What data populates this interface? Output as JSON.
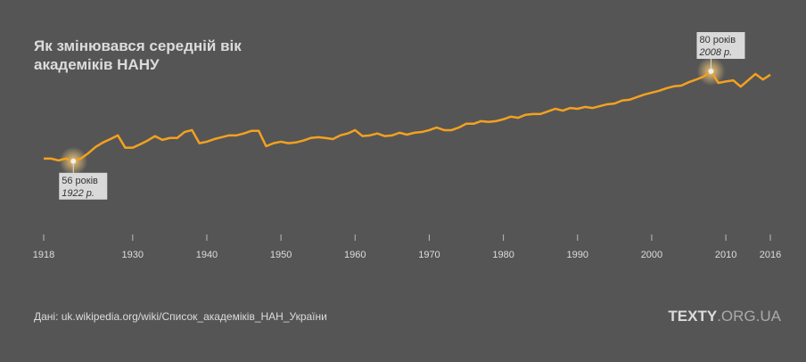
{
  "chart_data": {
    "type": "line",
    "title": [
      "Як змінювався середній вік",
      "академіків НАНУ"
    ],
    "x": [
      1918,
      1919,
      1920,
      1921,
      1922,
      1923,
      1924,
      1925,
      1926,
      1927,
      1928,
      1929,
      1930,
      1931,
      1932,
      1933,
      1934,
      1935,
      1936,
      1937,
      1938,
      1939,
      1940,
      1941,
      1942,
      1943,
      1944,
      1945,
      1946,
      1947,
      1948,
      1949,
      1950,
      1951,
      1952,
      1953,
      1954,
      1955,
      1956,
      1957,
      1958,
      1959,
      1960,
      1961,
      1962,
      1963,
      1964,
      1965,
      1966,
      1967,
      1968,
      1969,
      1970,
      1971,
      1972,
      1973,
      1974,
      1975,
      1976,
      1977,
      1978,
      1979,
      1980,
      1981,
      1982,
      1983,
      1984,
      1985,
      1986,
      1987,
      1988,
      1989,
      1990,
      1991,
      1992,
      1993,
      1994,
      1995,
      1996,
      1997,
      1998,
      1999,
      2000,
      2001,
      2002,
      2003,
      2004,
      2005,
      2006,
      2007,
      2008,
      2009,
      2010,
      2011,
      2012,
      2013,
      2014,
      2015,
      2016
    ],
    "series": [
      {
        "color": "#f4a11e",
        "values": [
          56.7,
          56.7,
          56.2,
          56.7,
          56,
          56.7,
          58.1,
          59.8,
          61,
          61.9,
          62.9,
          59.6,
          59.6,
          60.5,
          61.5,
          62.7,
          61.7,
          62.2,
          62.2,
          63.8,
          64.3,
          60.8,
          61.2,
          61.9,
          62.4,
          62.9,
          62.9,
          63.4,
          64.1,
          64.1,
          60,
          60.8,
          61.2,
          60.8,
          61,
          61.5,
          62.2,
          62.4,
          62.2,
          61.9,
          62.9,
          63.4,
          64.3,
          62.7,
          62.9,
          63.4,
          62.7,
          62.9,
          63.6,
          63.1,
          63.6,
          63.8,
          64.3,
          65,
          64.3,
          64.3,
          65,
          66,
          66,
          66.7,
          66.5,
          66.7,
          67.2,
          67.9,
          67.6,
          68.4,
          68.6,
          68.6,
          69.3,
          70,
          69.5,
          70.2,
          70,
          70.5,
          70.2,
          70.7,
          71.2,
          71.4,
          72.2,
          72.4,
          73.1,
          73.8,
          74.3,
          74.8,
          75.5,
          76,
          76.2,
          77.1,
          77.8,
          78.6,
          80,
          76.9,
          77.3,
          77.6,
          75.9,
          77.6,
          79.3,
          77.8,
          79.1
        ]
      }
    ],
    "annotations": [
      {
        "x": 1922,
        "value": 56,
        "label": "56 років",
        "sublabel": "1922 р."
      },
      {
        "x": 2008,
        "value": 80,
        "label": "80 років",
        "sublabel": "2008 р."
      }
    ],
    "xlim": [
      1918,
      2016
    ],
    "xticks": [
      1918,
      1930,
      1940,
      1950,
      1960,
      1970,
      1980,
      1990,
      2000,
      2010,
      2016
    ],
    "ylim": [
      50,
      85
    ],
    "source": "Дані: uk.wikipedia.org/wiki/Список_академіків_НАН_України",
    "logo": {
      "bold": "TEXTY",
      "light": ".ORG.UA"
    }
  }
}
